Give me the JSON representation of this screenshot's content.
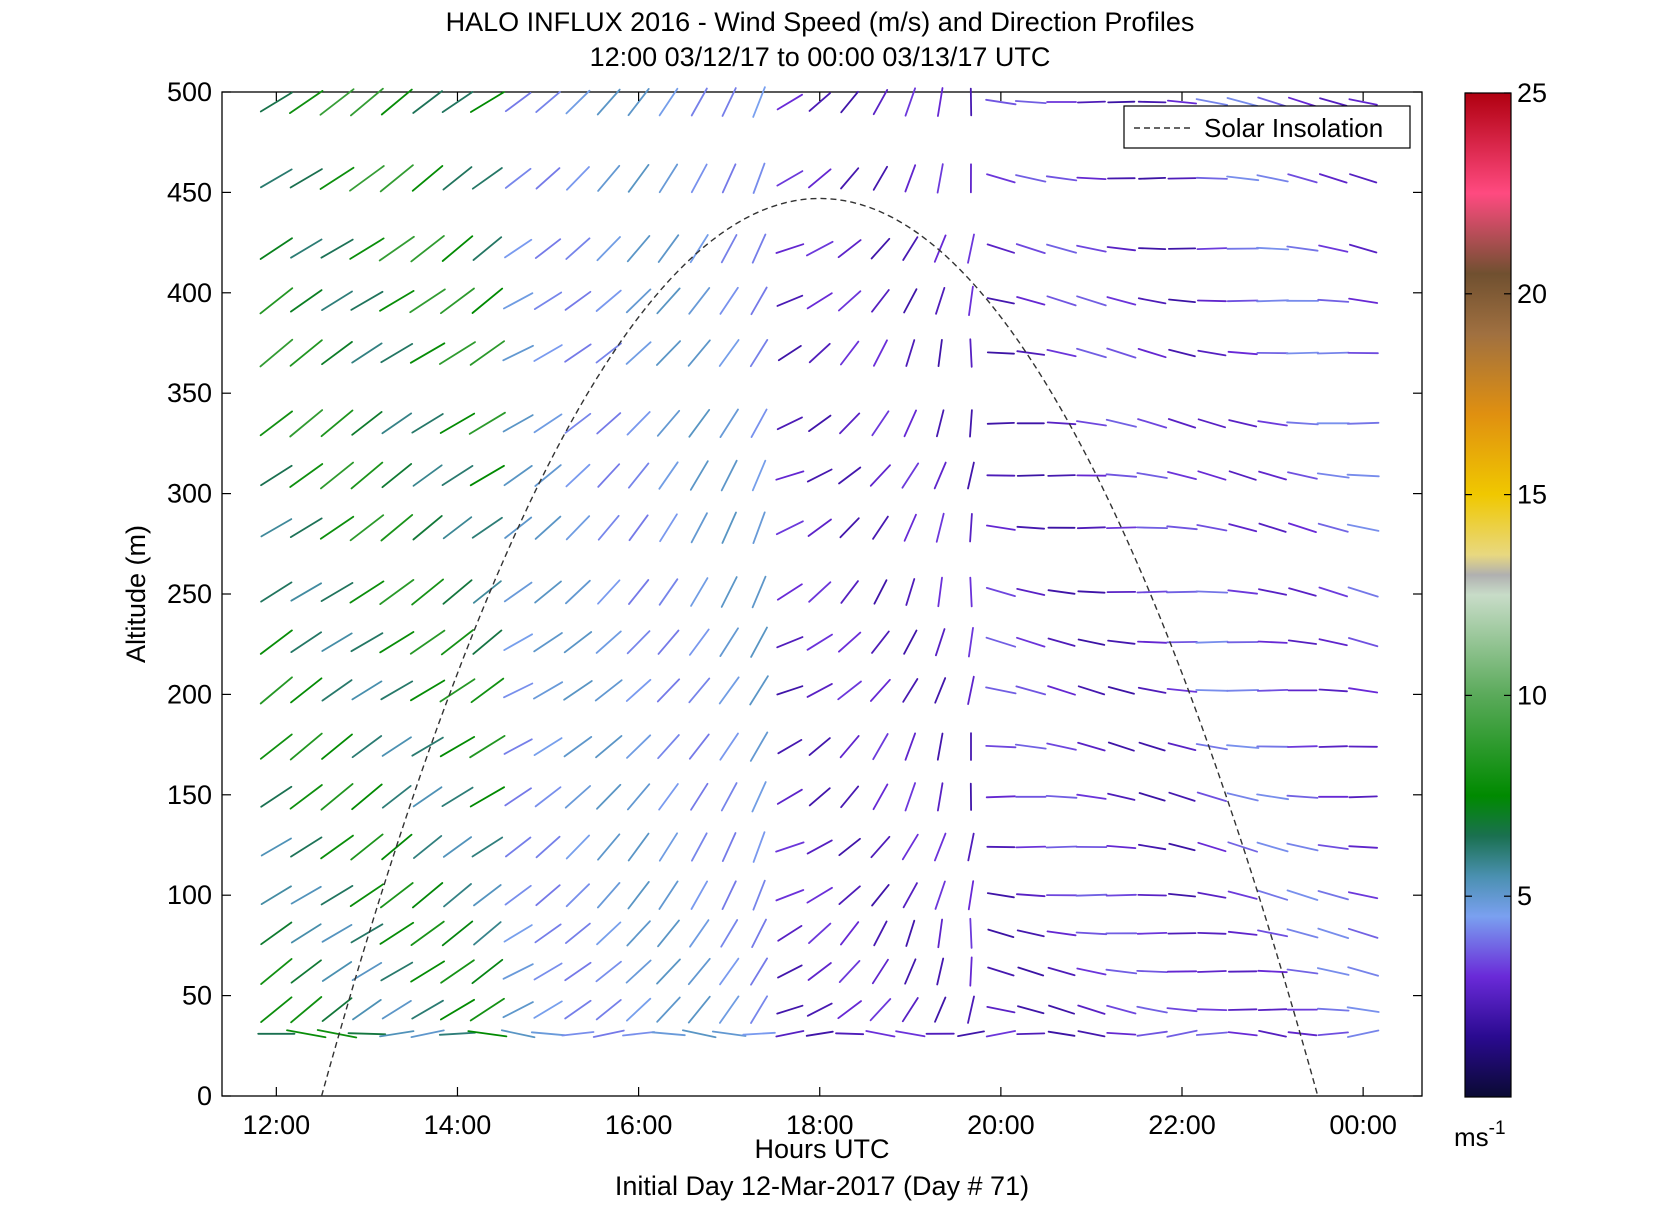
{
  "chart_data": {
    "type": "scatter",
    "title_line1": "HALO INFLUX 2016 - Wind Speed (m/s) and Direction Profiles",
    "title_line2": "12:00 03/12/17 to 00:00 03/13/17  UTC",
    "xlabel": "Hours UTC",
    "xlabel2": "Initial Day 12-Mar-2017 (Day # 71)",
    "ylabel": "Altitude (m)",
    "colorbar_label": "ms",
    "colorbar_label_sup": "-1",
    "xlim": [
      11.4,
      24.65
    ],
    "ylim": [
      0,
      500
    ],
    "xticks": [
      12,
      14,
      16,
      18,
      20,
      22,
      24
    ],
    "xtick_labels": [
      "12:00",
      "14:00",
      "16:00",
      "18:00",
      "20:00",
      "22:00",
      "00:00"
    ],
    "yticks": [
      0,
      50,
      100,
      150,
      200,
      250,
      300,
      350,
      400,
      450,
      500
    ],
    "ytick_labels": [
      "0",
      "50",
      "100",
      "150",
      "200",
      "250",
      "300",
      "350",
      "400",
      "450",
      "500"
    ],
    "colorbar_ticks": [
      5,
      10,
      15,
      20,
      25
    ],
    "colorbar_tick_labels": [
      "5",
      "10",
      "15",
      "20",
      "25"
    ],
    "colorbar_range": [
      0,
      25
    ],
    "colormap": [
      {
        "v": 0,
        "c": "#0a0a33"
      },
      {
        "v": 1.5,
        "c": "#2a0a90"
      },
      {
        "v": 3,
        "c": "#6a2ad8"
      },
      {
        "v": 4.5,
        "c": "#7aa0f0"
      },
      {
        "v": 5.5,
        "c": "#4a90b0"
      },
      {
        "v": 6.5,
        "c": "#1a7050"
      },
      {
        "v": 7.5,
        "c": "#008a00"
      },
      {
        "v": 10,
        "c": "#5aaa5a"
      },
      {
        "v": 12.5,
        "c": "#c8dcc8"
      },
      {
        "v": 13,
        "c": "#b0b0b0"
      },
      {
        "v": 13.5,
        "c": "#e8d880"
      },
      {
        "v": 15,
        "c": "#f0c800"
      },
      {
        "v": 17,
        "c": "#e09010"
      },
      {
        "v": 19,
        "c": "#a07040"
      },
      {
        "v": 20.5,
        "c": "#705030"
      },
      {
        "v": 22.5,
        "c": "#ff4a80"
      },
      {
        "v": 25,
        "c": "#b00010"
      }
    ],
    "legend": {
      "label": "Solar Insolation",
      "placement": "top-right",
      "style": "dashed"
    },
    "solar_insolation": {
      "start_hour": 12.5,
      "peak_hour": 18.0,
      "end_hour": 23.5,
      "peak_altitude": 447
    },
    "wind_barbs": {
      "times": [
        12.0,
        12.33,
        12.67,
        13.0,
        13.33,
        13.67,
        14.0,
        14.33,
        14.67,
        15.0,
        15.33,
        15.67,
        16.0,
        16.33,
        16.67,
        17.0,
        17.33,
        17.67,
        18.0,
        18.33,
        18.67,
        19.0,
        19.33,
        19.67,
        20.0,
        20.33,
        20.67,
        21.0,
        21.33,
        21.67,
        22.0,
        22.33,
        22.67,
        23.0,
        23.33,
        23.67,
        24.0
      ],
      "levels": [
        31,
        43,
        62,
        81,
        100,
        124,
        149,
        174,
        202,
        226,
        251,
        283,
        309,
        335,
        370,
        396,
        422,
        457,
        495
      ],
      "note": "Each barb: wind speed (m/s, color) and direction segment at time/altitude."
    }
  }
}
